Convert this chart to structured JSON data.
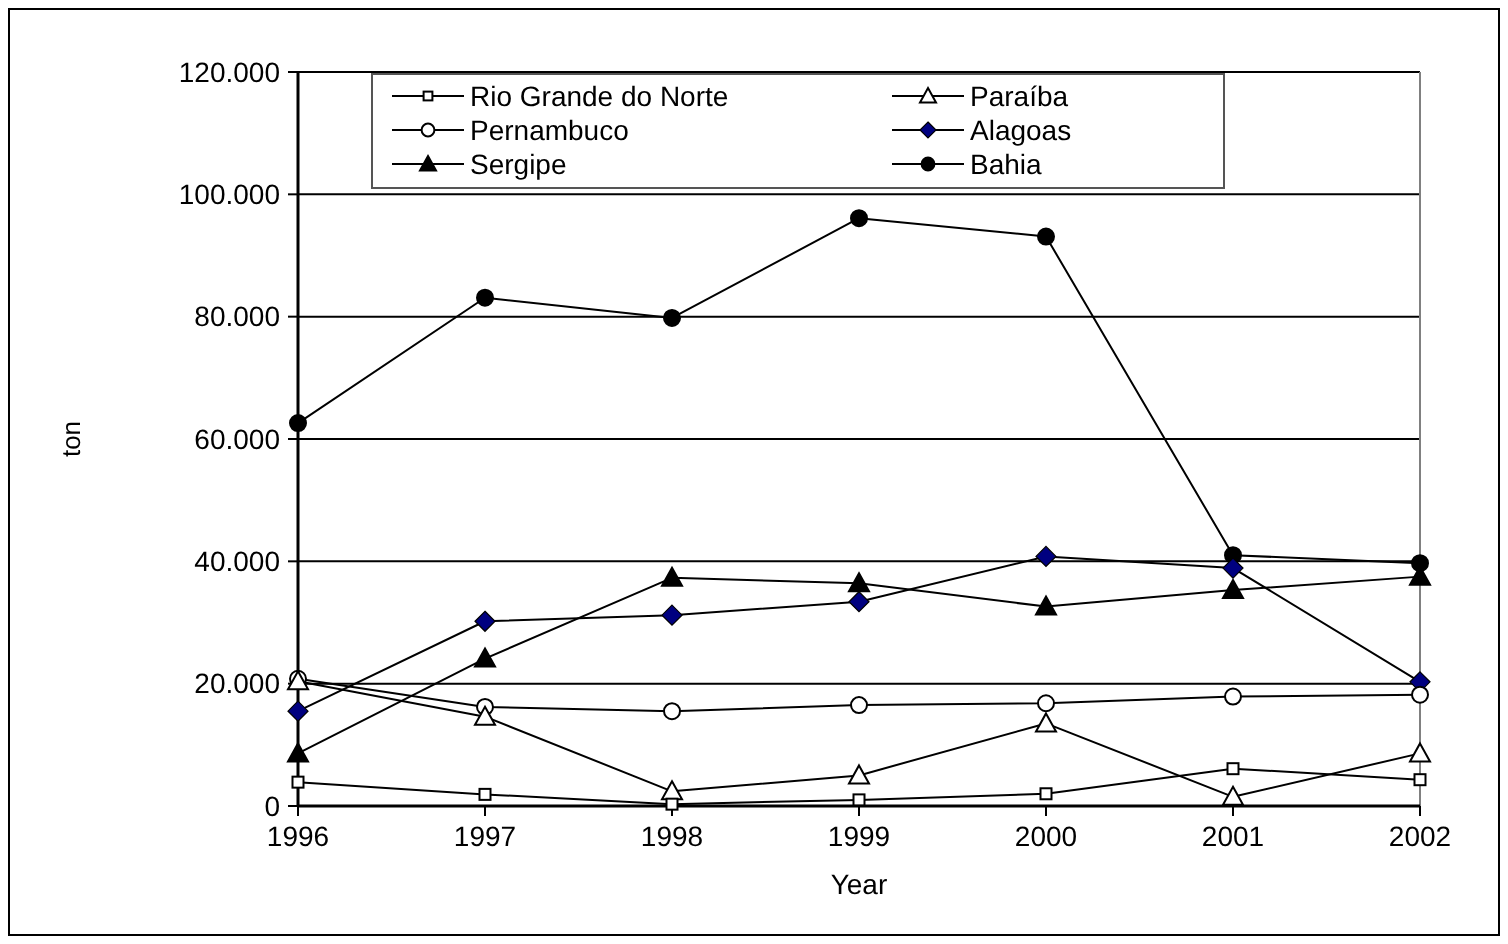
{
  "chart_data": {
    "type": "line",
    "xlabel": "Year",
    "ylabel": "ton",
    "x": [
      1996,
      1997,
      1998,
      1999,
      2000,
      2001,
      2002
    ],
    "xlim": [
      1996,
      2002
    ],
    "xticks": [
      1996,
      1997,
      1998,
      1999,
      2000,
      2001,
      2002
    ],
    "ylim": [
      0,
      120000
    ],
    "yticks": [
      0,
      {
        "value": 20000,
        "label": "20.000"
      },
      {
        "value": 40000,
        "label": "40.000"
      },
      {
        "value": 60000,
        "label": "60.000"
      },
      {
        "value": 80000,
        "label": "80.000"
      },
      {
        "value": 100000,
        "label": "100.000"
      },
      {
        "value": 120000,
        "label": "120.000"
      }
    ],
    "grid": "y",
    "legend": "top",
    "line_style": "solid",
    "series": [
      {
        "name": "Rio Grande do Norte",
        "color": "#ffffff",
        "marker": "square",
        "values": [
          3900,
          1900,
          300,
          1000,
          2000,
          6100,
          4300
        ]
      },
      {
        "name": "Paraíba",
        "color": "#ffffff",
        "marker": "triangle",
        "values": [
          20400,
          14600,
          2400,
          5000,
          13500,
          1500,
          8600
        ]
      },
      {
        "name": "Pernambuco",
        "color": "#ffffff",
        "marker": "circle",
        "values": [
          20800,
          16200,
          15500,
          16500,
          16800,
          17900,
          18200
        ]
      },
      {
        "name": "Alagoas",
        "color": "#000080",
        "marker": "diamond",
        "values": [
          15500,
          30200,
          31200,
          33400,
          40800,
          38900,
          20300
        ]
      },
      {
        "name": "Sergipe",
        "color": "#000000",
        "marker": "triangle",
        "values": [
          8600,
          24100,
          37300,
          36400,
          32600,
          35300,
          37500
        ]
      },
      {
        "name": "Bahia",
        "color": "#000000",
        "marker": "circle",
        "values": [
          62600,
          83100,
          79800,
          96100,
          93100,
          41000,
          39700
        ]
      }
    ]
  }
}
